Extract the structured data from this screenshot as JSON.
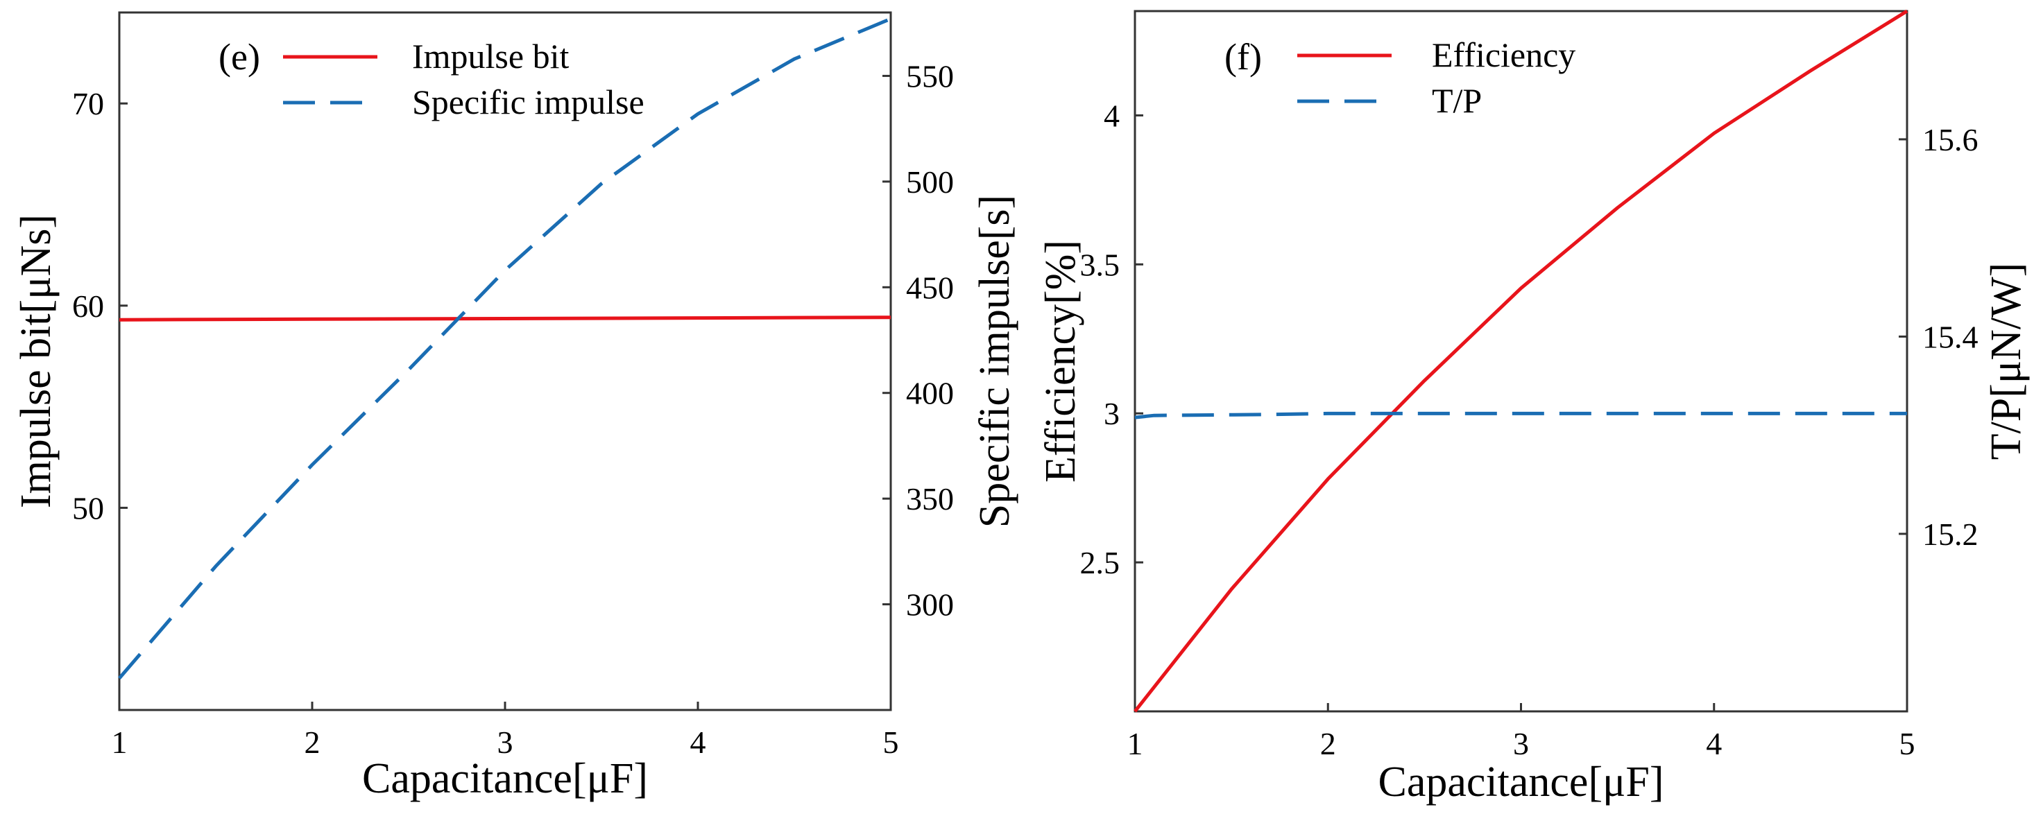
{
  "chart_data": [
    {
      "type": "line",
      "panel_label": "(e)",
      "xlabel": "Capacitance[μF]",
      "ylabel_left": "Impulse bit[μNs]",
      "ylabel_right": "Specific impulse[s]",
      "xlim": [
        1,
        5
      ],
      "ylim_left": [
        40,
        74.5
      ],
      "ylim_right": [
        250,
        580
      ],
      "xticks": [
        "1",
        "2",
        "3",
        "4",
        "5"
      ],
      "yticks_left": [
        "50",
        "60",
        "70"
      ],
      "yticks_right": [
        "300",
        "350",
        "400",
        "450",
        "500",
        "550"
      ],
      "legend_position": "top-left",
      "series": [
        {
          "name": "Impulse bit",
          "axis": "left",
          "style": "solid",
          "color": "#e8141b",
          "x": [
            1,
            2,
            3,
            4,
            5
          ],
          "y": [
            59.3,
            59.33,
            59.36,
            59.39,
            59.42
          ]
        },
        {
          "name": "Specific impulse",
          "axis": "right",
          "style": "dashed",
          "color": "#1a6db3",
          "x": [
            1,
            1.5,
            2,
            2.5,
            3,
            3.5,
            4,
            4.5,
            5
          ],
          "y": [
            265,
            318,
            366,
            411,
            458,
            499,
            532,
            558,
            577
          ]
        }
      ]
    },
    {
      "type": "line",
      "panel_label": "(f)",
      "xlabel": "Capacitance[μF]",
      "ylabel_left": "Efficiency[%]",
      "ylabel_right": "T/P[μN/W]",
      "xlim": [
        1,
        5
      ],
      "ylim_left": [
        2.0,
        4.35
      ],
      "ylim_right": [
        15.02,
        15.73
      ],
      "xticks": [
        "1",
        "2",
        "3",
        "4",
        "5"
      ],
      "yticks_left": [
        "2.5",
        "3",
        "3.5",
        "4"
      ],
      "yticks_right": [
        "15.2",
        "15.4",
        "15.6"
      ],
      "legend_position": "top-left",
      "series": [
        {
          "name": "Efficiency",
          "axis": "left",
          "style": "solid",
          "color": "#e8141b",
          "x": [
            1,
            1.5,
            2,
            2.5,
            3,
            3.5,
            4,
            4.5,
            5
          ],
          "y": [
            2.0,
            2.41,
            2.78,
            3.11,
            3.42,
            3.69,
            3.94,
            4.15,
            4.35
          ]
        },
        {
          "name": "T/P",
          "axis": "right",
          "style": "dashed",
          "color": "#1a6db3",
          "x": [
            1,
            1.1,
            1.7,
            2,
            3,
            4,
            5
          ],
          "y": [
            15.318,
            15.32,
            15.321,
            15.322,
            15.322,
            15.322,
            15.322
          ]
        }
      ]
    }
  ]
}
